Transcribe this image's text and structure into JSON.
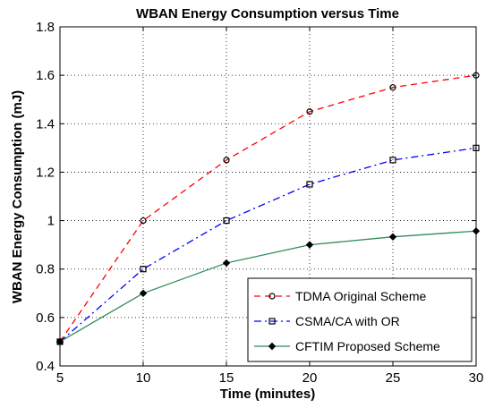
{
  "chart_data": {
    "type": "line",
    "title": "WBAN Energy Consumption versus Time",
    "xlabel": "Time (minutes)",
    "ylabel": "WBAN Energy Consumption (mJ)",
    "x": [
      5,
      10,
      15,
      20,
      25,
      30
    ],
    "xlim": [
      5,
      30
    ],
    "ylim": [
      0.4,
      1.8
    ],
    "xticks": [
      "5",
      "10",
      "15",
      "20",
      "25",
      "30"
    ],
    "yticks": [
      "0.4",
      "0.6",
      "0.8",
      "1",
      "1.2",
      "1.4",
      "1.6",
      "1.8"
    ],
    "xtick_values": [
      5,
      10,
      15,
      20,
      25,
      30
    ],
    "ytick_values": [
      0.4,
      0.6,
      0.8,
      1.0,
      1.2,
      1.4,
      1.6,
      1.8
    ],
    "grid": true,
    "legend_position": "bottom-right",
    "series": [
      {
        "name": "TDMA Original Scheme",
        "values": [
          0.5,
          1.0,
          1.25,
          1.45,
          1.55,
          1.6
        ],
        "color": "#ff0000",
        "line_style": "dashed",
        "marker": "circle"
      },
      {
        "name": "CSMA/CA with OR",
        "values": [
          0.5,
          0.8,
          1.0,
          1.15,
          1.25,
          1.3
        ],
        "color": "#0000ff",
        "line_style": "dash-dot",
        "marker": "square"
      },
      {
        "name": "CFTIM Proposed Scheme",
        "values": [
          0.5,
          0.7,
          0.825,
          0.9,
          0.933,
          0.957
        ],
        "color": "#2e8b57",
        "line_style": "solid",
        "marker": "diamond"
      }
    ]
  }
}
